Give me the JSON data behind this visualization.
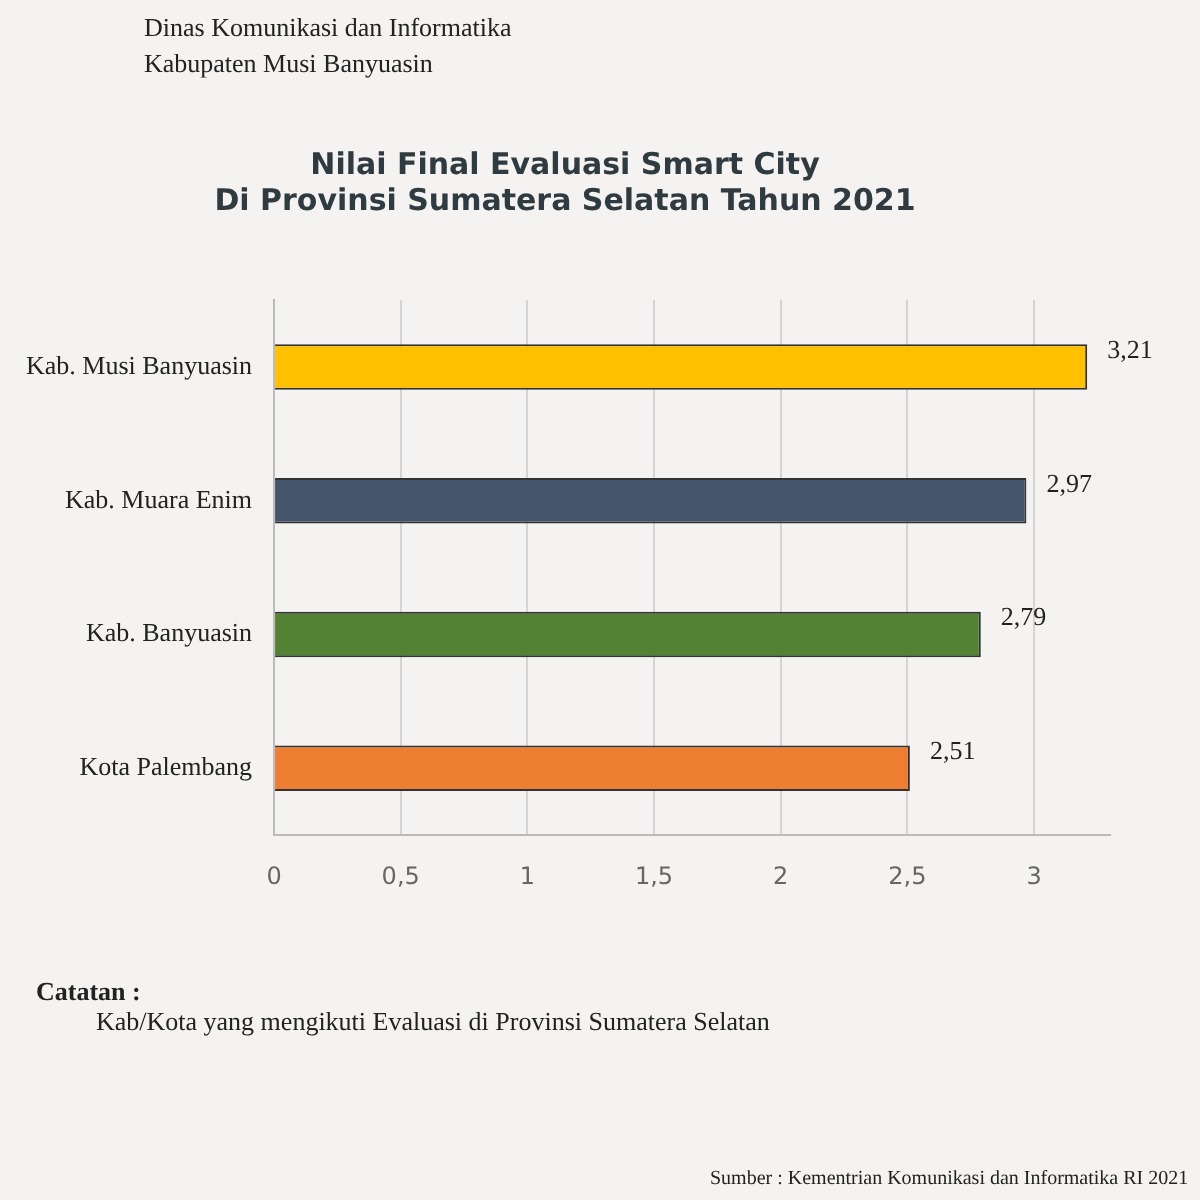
{
  "chart_data": {
    "type": "bar",
    "orientation": "horizontal",
    "title": [
      "Nilai Final Evaluasi Smart City",
      "Di Provinsi Sumatera Selatan Tahun 2021"
    ],
    "categories": [
      "Kab. Musi Banyuasin",
      "Kab. Muara Enim",
      "Kab. Banyuasin",
      "Kota Palembang"
    ],
    "values": [
      3.21,
      2.97,
      2.79,
      2.51
    ],
    "colors": [
      "#ffc000",
      "#44546a",
      "#548235",
      "#ed7d31"
    ],
    "value_labels": [
      "3,21",
      "2,97",
      "2,79",
      "2,51"
    ],
    "xlim": [
      0,
      3.3
    ],
    "xticks": [
      0,
      {
        "value": 0.5,
        "label": "0,5"
      },
      1,
      {
        "value": 1.5,
        "label": "1,5"
      },
      2,
      {
        "value": 2.5,
        "label": "2,5"
      },
      3
    ],
    "grid": "x",
    "legend": false,
    "annotations": [
      "Dinas Komunikasi dan Informatika",
      "Kabupaten Musi Banyuasin",
      "Catatan :",
      "Kab/Kota yang mengikuti Evaluasi di Provinsi Sumatera Selatan",
      "Sumber : Kementrian Komunikasi dan Informatika RI  2021"
    ]
  }
}
